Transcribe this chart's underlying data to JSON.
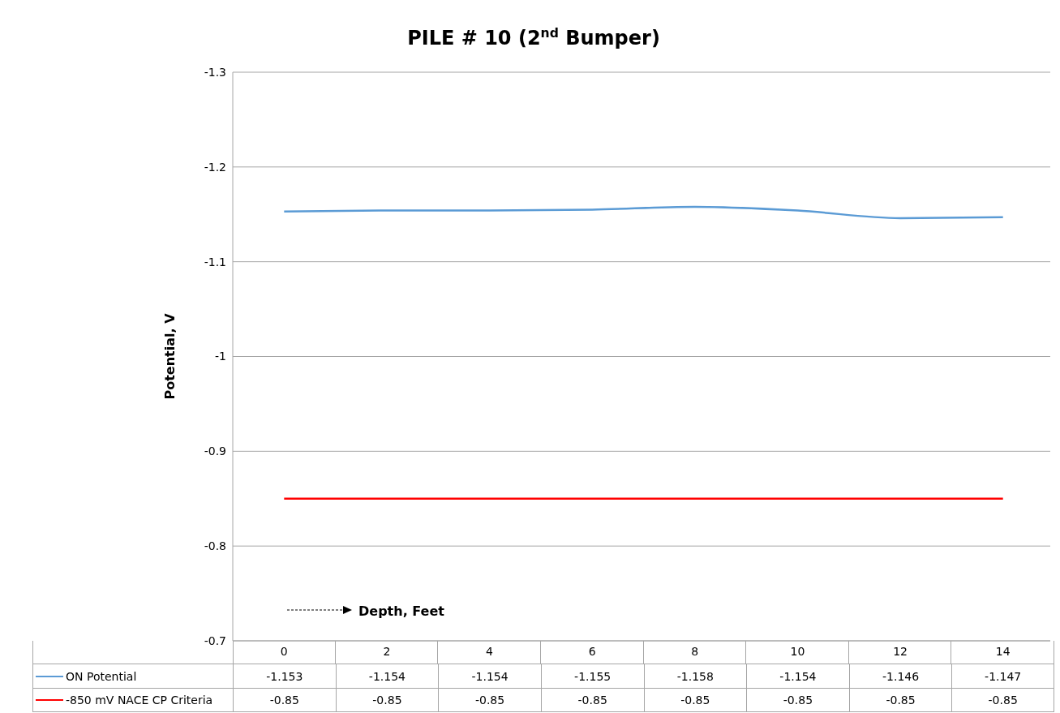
{
  "chart_data": {
    "type": "line",
    "title": "PILE # 10 (2$^{nd}$ Bumper)",
    "xlabel": "Depth, Feet",
    "ylabel": "Potential, V",
    "categories": [
      "0",
      "2",
      "4",
      "6",
      "8",
      "10",
      "12",
      "14"
    ],
    "series": [
      {
        "name": "ON Potential",
        "color": "#5b9bd5",
        "values": [
          -1.153,
          -1.154,
          -1.154,
          -1.155,
          -1.158,
          -1.154,
          -1.146,
          -1.147
        ]
      },
      {
        "name": "-850 mV NACE CP Criteria",
        "color": "#ff0000",
        "values": [
          -0.85,
          -0.85,
          -0.85,
          -0.85,
          -0.85,
          -0.85,
          -0.85,
          -0.85
        ]
      }
    ],
    "ylim": [
      -0.7,
      -1.3
    ],
    "yticks": [
      -1.3,
      -1.2,
      -1.1,
      -1,
      -0.9,
      -0.8,
      -0.7
    ],
    "grid": "y",
    "legend": "bottom",
    "data_labels": true,
    "marker": "none",
    "line_style": "solid"
  }
}
